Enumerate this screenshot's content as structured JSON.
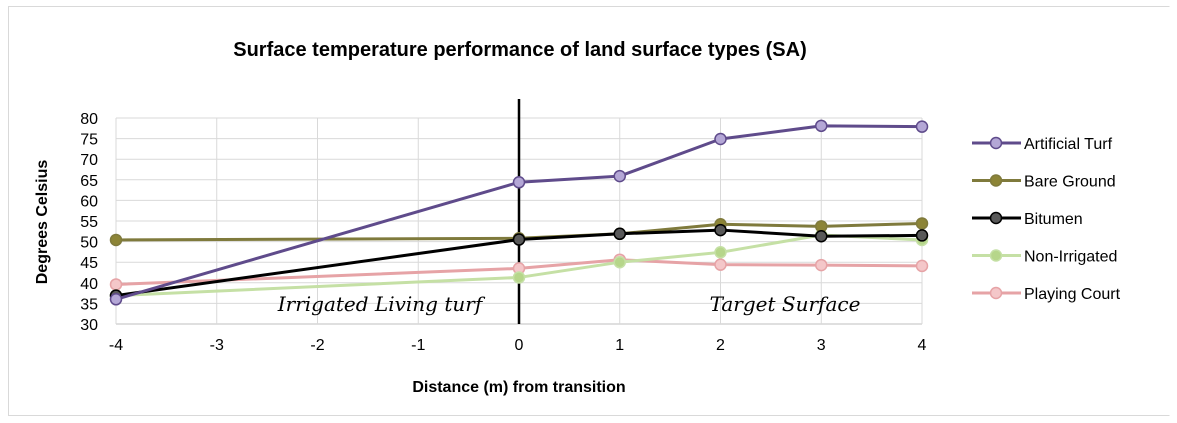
{
  "chart_data": {
    "type": "line",
    "title": "Surface temperature performance of land surface types (SA)",
    "xlabel": "Distance (m) from transition",
    "ylabel": "Degrees Celsius",
    "x": [
      -4,
      0,
      1,
      2,
      3,
      4
    ],
    "xlim": [
      -4,
      4
    ],
    "xticks": [
      "-4",
      "-3",
      "-2",
      "-1",
      "0",
      "1",
      "2",
      "3",
      "4"
    ],
    "ylim": [
      30,
      80
    ],
    "yticks": [
      "30",
      "35",
      "40",
      "45",
      "50",
      "55",
      "60",
      "65",
      "70",
      "75",
      "80"
    ],
    "grid": true,
    "legend_position": "right",
    "series": [
      {
        "name": "Artificial Turf",
        "values": [
          36.0,
          64.4,
          65.9,
          74.9,
          78.1,
          77.9
        ],
        "color": "#5f4b8b",
        "marker": "#b4a7d6"
      },
      {
        "name": "Bare Ground",
        "values": [
          50.4,
          50.8,
          51.9,
          54.2,
          53.7,
          54.4
        ],
        "color": "#7f7a3c",
        "marker": "#8c8436"
      },
      {
        "name": "Bitumen",
        "values": [
          36.9,
          50.5,
          51.9,
          52.8,
          51.3,
          51.5
        ],
        "color": "#000000",
        "marker": "#595959"
      },
      {
        "name": "Non-Irrigated",
        "values": [
          36.9,
          41.3,
          45.0,
          47.4,
          51.6,
          50.4
        ],
        "color": "#c5e0a5",
        "marker": "#b6d68a"
      },
      {
        "name": "Playing Court",
        "values": [
          39.6,
          43.5,
          45.6,
          44.4,
          44.3,
          44.1
        ],
        "color": "#e6a3a6",
        "marker": "#f4c7c9"
      }
    ],
    "annotations": [
      {
        "text": "Irrigated Living turf"
      },
      {
        "text": "Target Surface"
      }
    ]
  }
}
